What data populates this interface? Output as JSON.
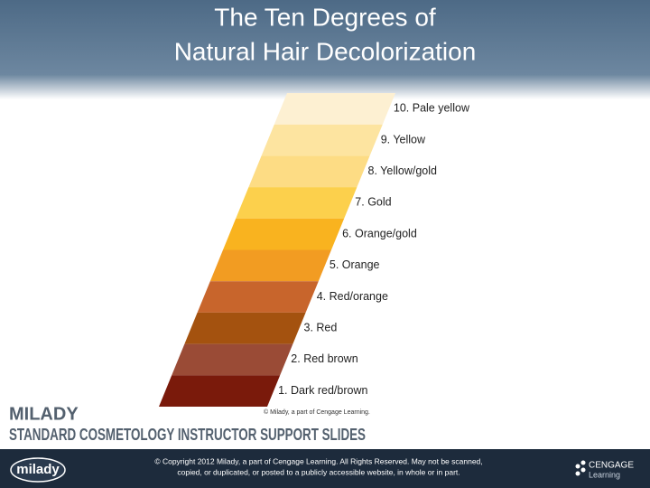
{
  "header": {
    "title_lines": [
      "The Ten Degrees of",
      "Natural Hair Decolorization"
    ]
  },
  "levels": [
    {
      "label": "10. Pale yellow",
      "color": "#fdf0d2"
    },
    {
      "label": "9. Yellow",
      "color": "#fde4a0"
    },
    {
      "label": "8. Yellow/gold",
      "color": "#fddc84"
    },
    {
      "label": "7. Gold",
      "color": "#fcd04c"
    },
    {
      "label": "6. Orange/gold",
      "color": "#f9b31f"
    },
    {
      "label": "5. Orange",
      "color": "#f29c22"
    },
    {
      "label": "4. Red/orange",
      "color": "#c8652c"
    },
    {
      "label": "3. Red",
      "color": "#a4520f"
    },
    {
      "label": "2. Red brown",
      "color": "#9a4b36"
    },
    {
      "label": "1. Dark red/brown",
      "color": "#7a1a0b"
    }
  ],
  "credit": "© Milady, a part of Cengage Learning.",
  "footer": {
    "brand": "MILADY",
    "series": "STANDARD COSMETOLOGY INSTRUCTOR SUPPORT SLIDES",
    "logo": "milady",
    "copyright_lines": [
      "© Copyright 2012 Milady, a part of Cengage Learning. All Rights Reserved. May not be scanned,",
      "copied, or duplicated, or posted to a publicly accessible website, in whole or in part."
    ],
    "publisher": "CENGAGE",
    "publisher_sub": "Learning"
  }
}
